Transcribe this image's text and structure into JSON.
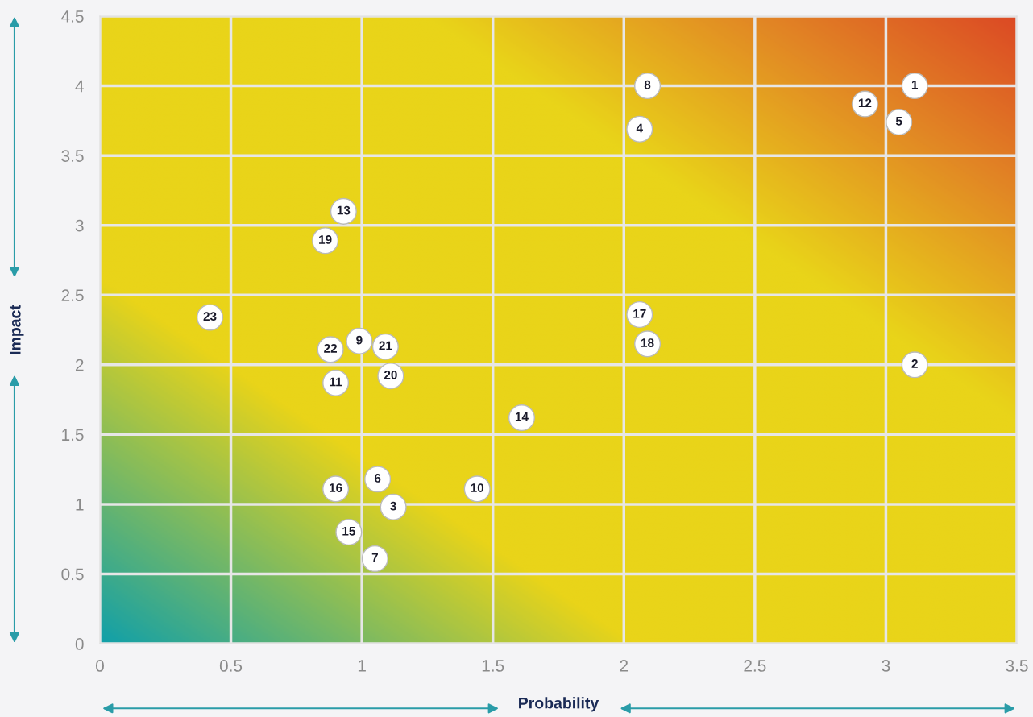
{
  "chart_data": {
    "type": "scatter",
    "xlabel": "Probability",
    "ylabel": "Impact",
    "x": [
      3.11,
      3.11,
      1.12,
      2.06,
      3.05,
      1.06,
      1.05,
      2.09,
      0.99,
      1.44,
      0.9,
      2.92,
      0.93,
      1.61,
      0.95,
      0.9,
      2.06,
      2.09,
      0.86,
      1.11,
      1.09,
      0.88,
      0.42
    ],
    "values": [
      4.0,
      2.0,
      0.98,
      3.69,
      3.74,
      1.18,
      0.61,
      4.0,
      2.17,
      1.11,
      1.87,
      3.87,
      3.1,
      1.62,
      0.8,
      1.11,
      2.36,
      2.15,
      2.89,
      1.92,
      2.13,
      2.11,
      2.34
    ],
    "annotations": [
      {
        "text": "1",
        "x": 3.11,
        "y": 4.0
      },
      {
        "text": "2",
        "x": 3.11,
        "y": 2.0
      },
      {
        "text": "3",
        "x": 1.12,
        "y": 0.98
      },
      {
        "text": "4",
        "x": 2.06,
        "y": 3.69
      },
      {
        "text": "5",
        "x": 3.05,
        "y": 3.74
      },
      {
        "text": "6",
        "x": 1.06,
        "y": 1.18
      },
      {
        "text": "7",
        "x": 1.05,
        "y": 0.61
      },
      {
        "text": "8",
        "x": 2.09,
        "y": 4.0
      },
      {
        "text": "9",
        "x": 0.99,
        "y": 2.17
      },
      {
        "text": "10",
        "x": 1.44,
        "y": 1.11
      },
      {
        "text": "11",
        "x": 0.9,
        "y": 1.87
      },
      {
        "text": "12",
        "x": 2.92,
        "y": 3.87
      },
      {
        "text": "13",
        "x": 0.93,
        "y": 3.1
      },
      {
        "text": "14",
        "x": 1.61,
        "y": 1.62
      },
      {
        "text": "15",
        "x": 0.95,
        "y": 0.8
      },
      {
        "text": "16",
        "x": 0.9,
        "y": 1.11
      },
      {
        "text": "17",
        "x": 2.06,
        "y": 2.36
      },
      {
        "text": "18",
        "x": 2.09,
        "y": 2.15
      },
      {
        "text": "19",
        "x": 0.86,
        "y": 2.89
      },
      {
        "text": "20",
        "x": 1.11,
        "y": 1.92
      },
      {
        "text": "21",
        "x": 1.09,
        "y": 2.13
      },
      {
        "text": "22",
        "x": 0.88,
        "y": 2.11
      },
      {
        "text": "23",
        "x": 0.42,
        "y": 2.34
      }
    ],
    "color": "#ffffff",
    "marker": "circle",
    "grid": true,
    "xlim": [
      0,
      3.5
    ],
    "ylim": [
      0,
      4.5
    ],
    "xticks": [
      0,
      0.5,
      1,
      1.5,
      2,
      2.5,
      3,
      3.5
    ],
    "yticks": [
      0,
      0.5,
      1,
      1.5,
      2,
      2.5,
      3,
      3.5,
      4,
      4.5
    ]
  }
}
